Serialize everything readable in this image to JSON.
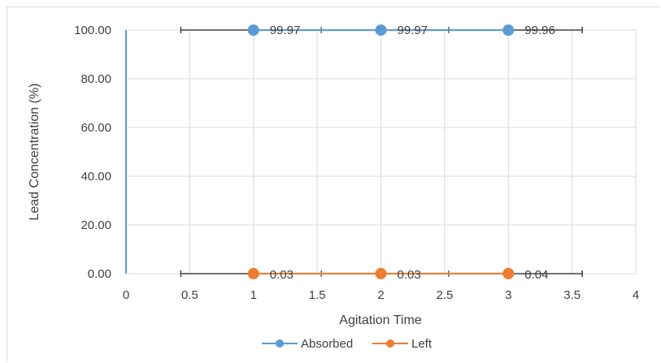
{
  "chart_data": {
    "type": "scatter",
    "title": "",
    "xlabel": "Agitation Time",
    "ylabel": "Lead Concentration  (%)",
    "xlim": [
      0,
      4
    ],
    "ylim": [
      0,
      100
    ],
    "x_ticks": [
      "0",
      "0.5",
      "1",
      "1.5",
      "2",
      "2.5",
      "3",
      "3.5",
      "4"
    ],
    "y_ticks": [
      "0.00",
      "20.00",
      "40.00",
      "60.00",
      "80.00",
      "100.00"
    ],
    "grid": true,
    "legend_position": "bottom",
    "series": [
      {
        "name": "Absorbed",
        "color": "#5b9bd5",
        "x": [
          1,
          2,
          3
        ],
        "values": [
          99.97,
          99.97,
          99.96
        ],
        "labels": [
          "99.97",
          "99.97",
          "99.96"
        ]
      },
      {
        "name": "Left",
        "color": "#ed7d31",
        "x": [
          1,
          2,
          3
        ],
        "values": [
          0.03,
          0.03,
          0.04
        ],
        "labels": [
          "0.03",
          "0.03",
          "0.04"
        ]
      }
    ],
    "dark_band_x": [
      0.43,
      3.58
    ]
  }
}
